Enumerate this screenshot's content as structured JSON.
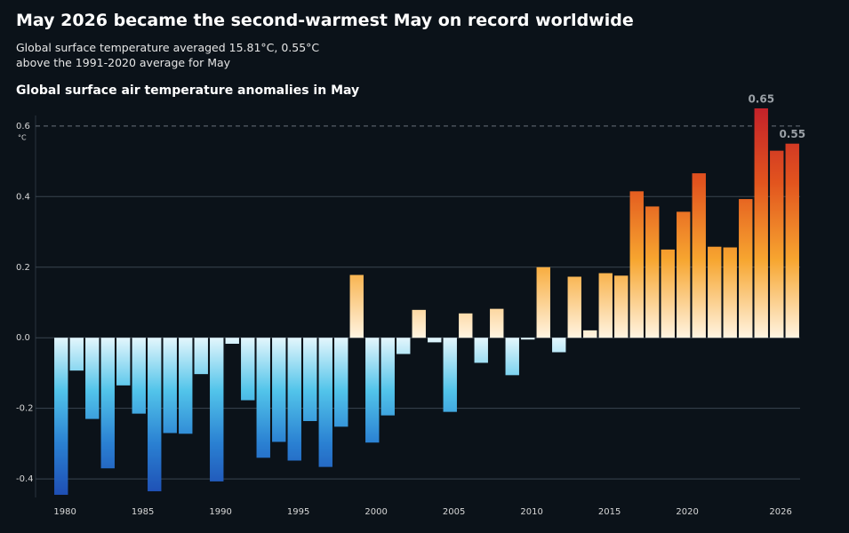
{
  "title": "May 2026 became the second-warmest May on record worldwide",
  "subtitle": "Global surface temperature averaged 15.81°C, 0.55°C above the 1991-2020 average for May",
  "chart_data": {
    "type": "bar",
    "title": "Global surface air temperature anomalies in May",
    "y_unit": "°C",
    "x": [
      1979,
      1980,
      1981,
      1982,
      1983,
      1984,
      1985,
      1986,
      1987,
      1988,
      1989,
      1990,
      1991,
      1992,
      1993,
      1994,
      1995,
      1996,
      1997,
      1998,
      1999,
      2000,
      2001,
      2002,
      2003,
      2004,
      2005,
      2006,
      2007,
      2008,
      2009,
      2010,
      2011,
      2012,
      2013,
      2014,
      2015,
      2016,
      2017,
      2018,
      2019,
      2020,
      2021,
      2022,
      2023,
      2024,
      2025,
      2026
    ],
    "values": [
      -0.445,
      -0.093,
      -0.23,
      -0.37,
      -0.135,
      -0.215,
      -0.435,
      -0.27,
      -0.272,
      -0.103,
      -0.407,
      -0.017,
      -0.177,
      -0.34,
      -0.295,
      -0.348,
      -0.236,
      -0.366,
      -0.252,
      0.178,
      -0.297,
      -0.22,
      -0.046,
      0.079,
      -0.013,
      -0.21,
      0.069,
      -0.071,
      0.082,
      -0.106,
      -0.005,
      0.2,
      -0.041,
      0.173,
      0.021,
      0.183,
      0.176,
      0.415,
      0.372,
      0.25,
      0.357,
      0.466,
      0.258,
      0.256,
      0.393,
      0.65,
      0.53,
      0.55
    ],
    "value_labels": [
      null,
      null,
      null,
      null,
      null,
      null,
      null,
      null,
      null,
      null,
      null,
      null,
      null,
      null,
      null,
      null,
      null,
      null,
      null,
      null,
      null,
      null,
      null,
      null,
      null,
      null,
      null,
      null,
      null,
      null,
      null,
      null,
      null,
      null,
      null,
      null,
      null,
      null,
      null,
      null,
      null,
      null,
      null,
      null,
      null,
      "0.65",
      null,
      "0.55"
    ],
    "warm_colors": [
      "#fff4e2",
      "#f7a630",
      "#e2541e",
      "#c21f2a"
    ],
    "cool_colors": [
      "#e3f6fc",
      "#52c4ea",
      "#2a80d2",
      "#1e4db3"
    ],
    "xlim": [
      1978.5,
      2026.5
    ],
    "xticks": [
      1980,
      1985,
      1990,
      1995,
      2000,
      2005,
      2010,
      2015,
      2020,
      2026
    ],
    "ylim": [
      -0.45,
      0.66
    ],
    "yticks": [
      -0.4,
      -0.2,
      {
        "value": 0,
        "label": "0.0"
      },
      0.2,
      0.4,
      0.6
    ],
    "grid": true
  }
}
